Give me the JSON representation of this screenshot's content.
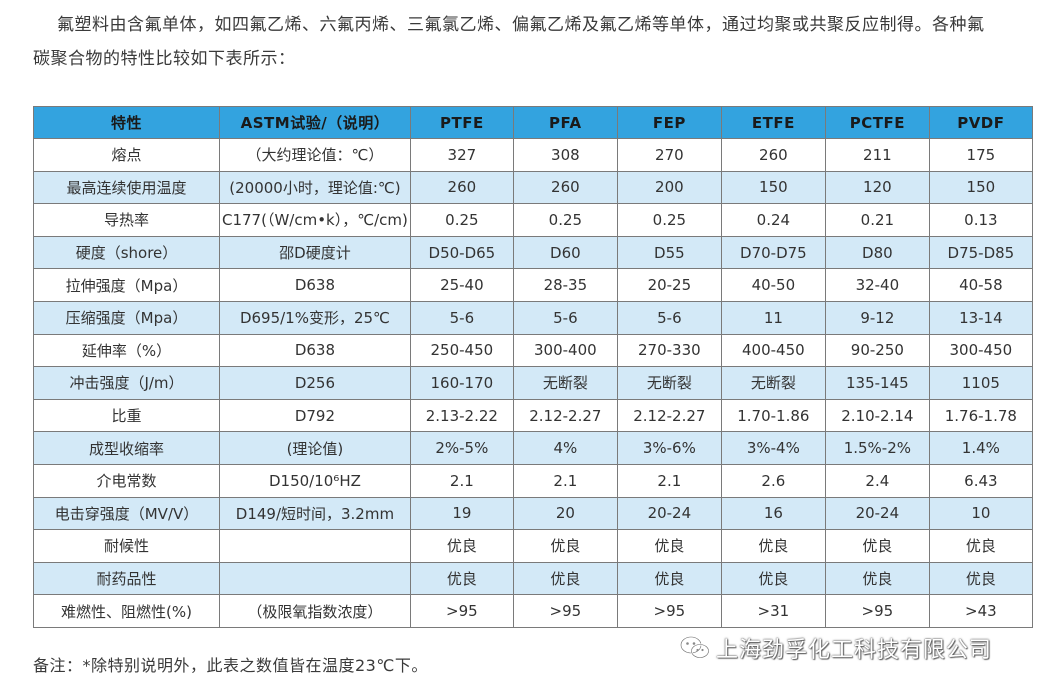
{
  "intro": {
    "line1": "氟塑料由含氟单体，如四氟乙烯、六氟丙烯、三氟氯乙烯、偏氟乙烯及氟乙烯等单体，通过均聚或共聚反应制得。各种氟",
    "line2": "碳聚合物的特性比较如下表所示："
  },
  "table": {
    "headers": [
      "特性",
      "ASTM试验/（说明）",
      "PTFE",
      "PFA",
      "FEP",
      "ETFE",
      "PCTFE",
      "PVDF"
    ],
    "header_color": "#33a3df",
    "stripe_color": "#d3e9f7",
    "rows": [
      [
        "熔点",
        "（大约理论值：℃）",
        "327",
        "308",
        "270",
        "260",
        "211",
        "175"
      ],
      [
        "最高连续使用温度",
        "(20000小时，理论值:℃)",
        "260",
        "260",
        "200",
        "150",
        "120",
        "150"
      ],
      [
        "导热率",
        "C177(（W/cm•k），℃/cm)",
        "0.25",
        "0.25",
        "0.25",
        "0.24",
        "0.21",
        "0.13"
      ],
      [
        "硬度（shore）",
        "邵D硬度计",
        "D50-D65",
        "D60",
        "D55",
        "D70-D75",
        "D80",
        "D75-D85"
      ],
      [
        "拉伸强度（Mpa）",
        "D638",
        "25-40",
        "28-35",
        "20-25",
        "40-50",
        "32-40",
        "40-58"
      ],
      [
        "压缩强度（Mpa）",
        "D695/1%变形，25℃",
        "5-6",
        "5-6",
        "5-6",
        "11",
        "9-12",
        "13-14"
      ],
      [
        "延伸率（%）",
        "D638",
        "250-450",
        "300-400",
        "270-330",
        "400-450",
        "90-250",
        "300-450"
      ],
      [
        "冲击强度（J/m）",
        "D256",
        "160-170",
        "无断裂",
        "无断裂",
        "无断裂",
        "135-145",
        "1105"
      ],
      [
        "比重",
        "D792",
        "2.13-2.22",
        "2.12-2.27",
        "2.12-2.27",
        "1.70-1.86",
        "2.10-2.14",
        "1.76-1.78"
      ],
      [
        "成型收缩率",
        "(理论值)",
        "2%-5%",
        "4%",
        "3%-6%",
        "3%-4%",
        "1.5%-2%",
        "1.4%"
      ],
      [
        "介电常数",
        "D150/10⁶HZ",
        "2.1",
        "2.1",
        "2.1",
        "2.6",
        "2.4",
        "6.43"
      ],
      [
        "电击穿强度（MV/V）",
        "D149/短时间，3.2mm",
        "19",
        "20",
        "20-24",
        "16",
        "20-24",
        "10"
      ],
      [
        "耐候性",
        "",
        "优良",
        "优良",
        "优良",
        "优良",
        "优良",
        "优良"
      ],
      [
        "耐药品性",
        "",
        "优良",
        "优良",
        "优良",
        "优良",
        "优良",
        "优良"
      ],
      [
        "难燃性、阻燃性(%)",
        "（极限氧指数浓度）",
        ">95",
        ">95",
        ">95",
        ">31",
        ">95",
        ">43"
      ]
    ]
  },
  "footnote": "备注：*除特别说明外，此表之数值皆在温度23℃下。",
  "watermark": {
    "icon": "wechat-icon",
    "text": "上海劲孚化工科技有限公司"
  }
}
